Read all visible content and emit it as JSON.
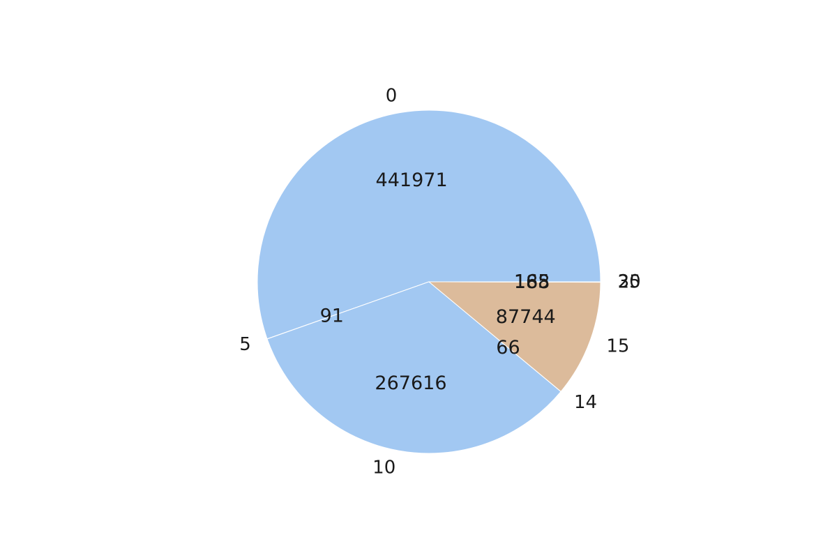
{
  "chart_data": {
    "type": "pie",
    "start_angle_deg": 0,
    "direction": "counterclockwise",
    "legend": "none",
    "slices": [
      {
        "label": "0",
        "value": 441971,
        "value_label": "441971",
        "color": "#a2c8f2"
      },
      {
        "label": "5",
        "value": 91,
        "value_label": "91",
        "color": "#a2c8f2"
      },
      {
        "label": "10",
        "value": 267616,
        "value_label": "267616",
        "color": "#a2c8f2"
      },
      {
        "label": "14",
        "value": 66,
        "value_label": "66",
        "color": "#dcbb9b"
      },
      {
        "label": "15",
        "value": 87744,
        "value_label": "87744",
        "color": "#dcbb9b"
      },
      {
        "label": "25",
        "value": 188,
        "value_label": "188",
        "color": "#dcbb9b"
      },
      {
        "label": "30",
        "value": 165,
        "value_label": "165",
        "color": "#c8c8c8"
      }
    ]
  }
}
